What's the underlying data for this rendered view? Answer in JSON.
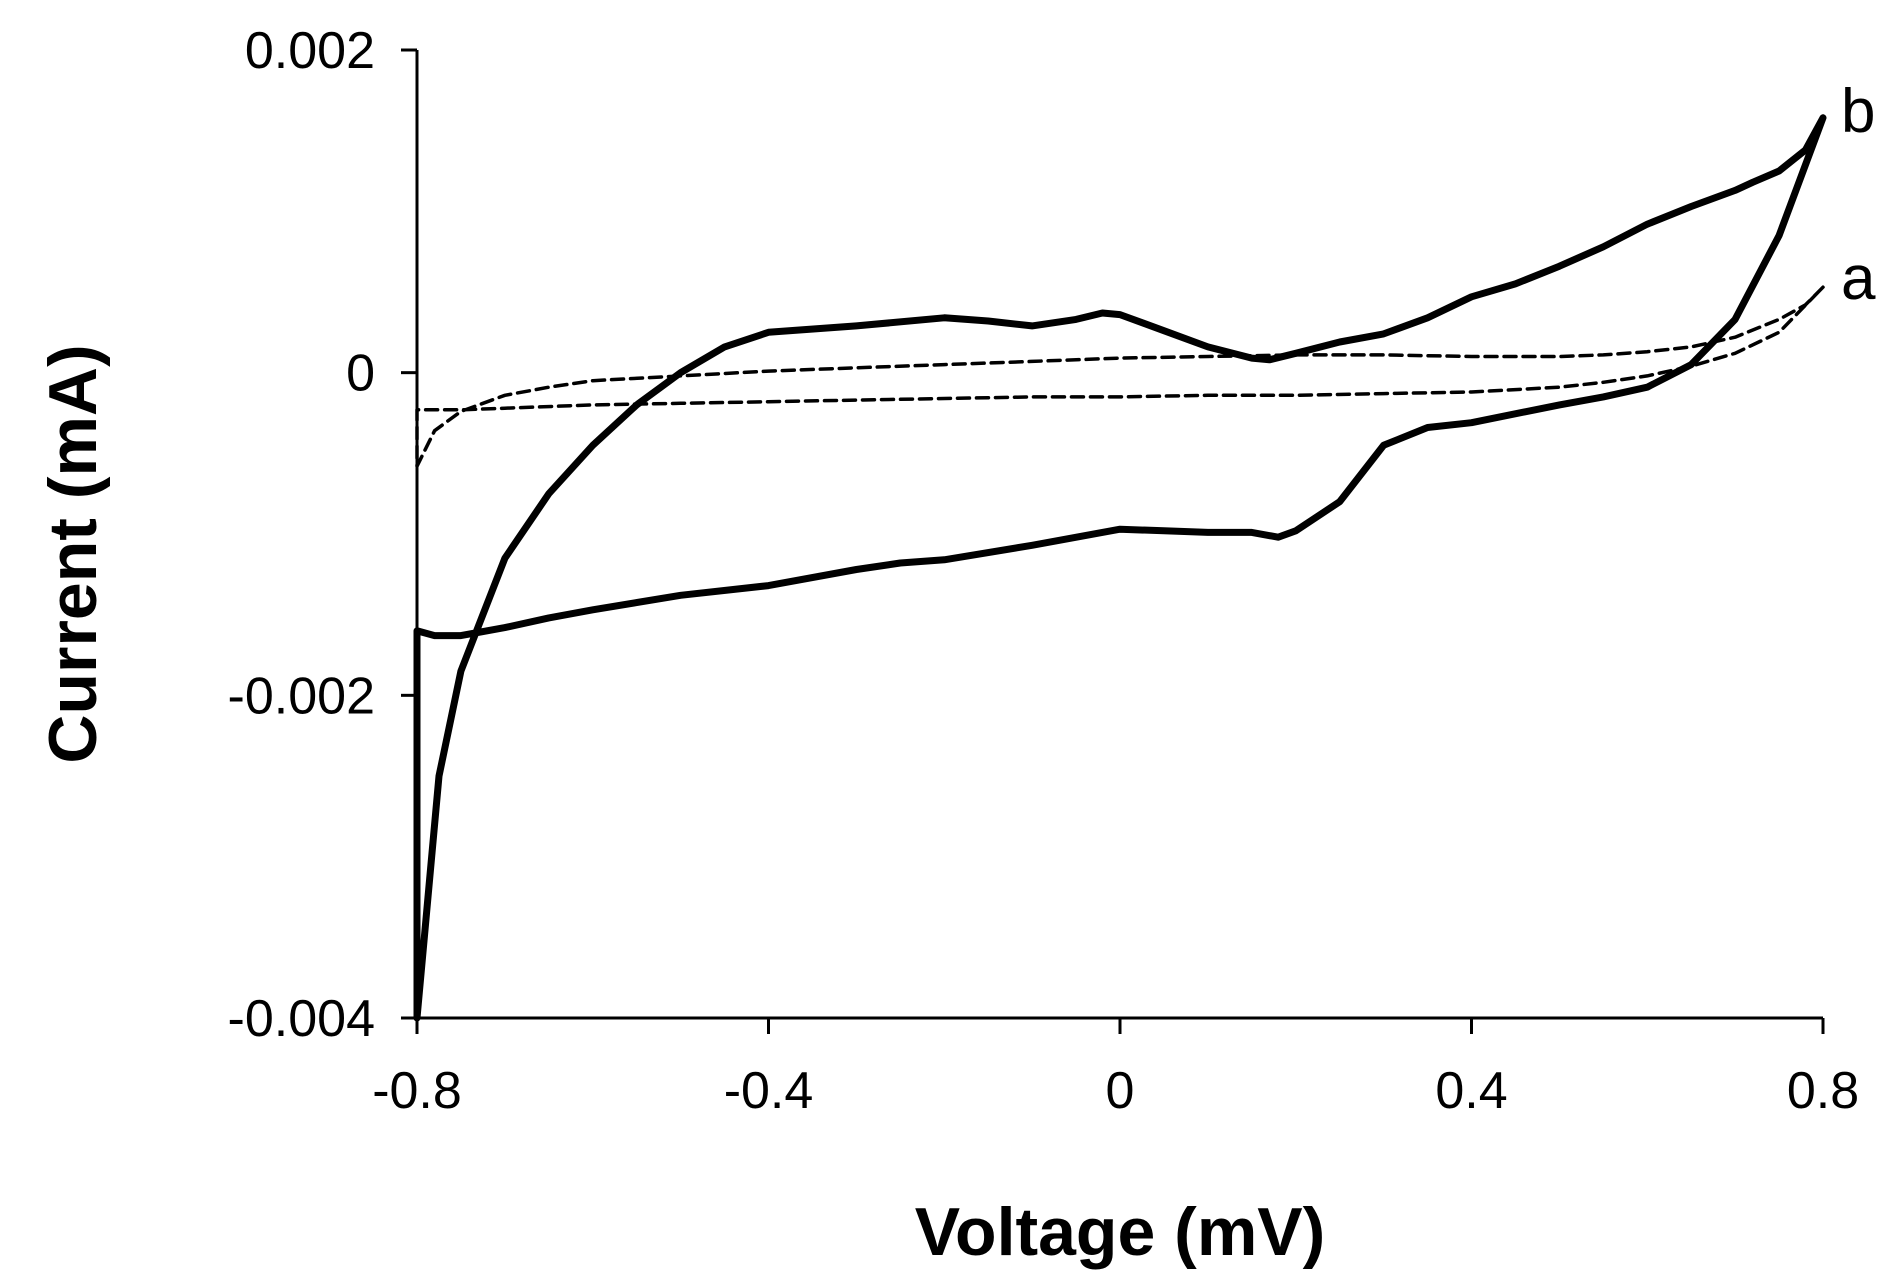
{
  "chart_data": {
    "type": "line",
    "title": "",
    "xlabel": "Voltage (mV)",
    "ylabel": "Current (mA)",
    "xlim": [
      -0.8,
      0.8
    ],
    "ylim": [
      -0.004,
      0.002
    ],
    "xticks": [
      -0.8,
      -0.4,
      0,
      0.4,
      0.8
    ],
    "xtick_labels": [
      "-0.8",
      "-0.4",
      "0",
      "0.4",
      "0.8"
    ],
    "yticks": [
      -0.004,
      -0.002,
      0,
      0.002
    ],
    "ytick_labels": [
      "-0.004",
      "-0.002",
      "0",
      "0.002"
    ],
    "grid": false,
    "legend": "inline labels at right end of curves",
    "series": [
      {
        "name": "a",
        "style": "dashed",
        "color": "#000000",
        "x": [
          0.8,
          0.78,
          0.75,
          0.7,
          0.65,
          0.6,
          0.55,
          0.5,
          0.4,
          0.3,
          0.2,
          0.1,
          0.0,
          -0.1,
          -0.2,
          -0.3,
          -0.4,
          -0.5,
          -0.6,
          -0.65,
          -0.7,
          -0.75,
          -0.78,
          -0.8,
          -0.8,
          -0.75,
          -0.7,
          -0.6,
          -0.5,
          -0.4,
          -0.3,
          -0.2,
          -0.1,
          0.0,
          0.1,
          0.2,
          0.3,
          0.4,
          0.5,
          0.55,
          0.6,
          0.65,
          0.7,
          0.75,
          0.8
        ],
        "y": [
          0.00053,
          0.00042,
          0.00033,
          0.00022,
          0.00016,
          0.00013,
          0.00011,
          0.0001,
          0.0001,
          0.00011,
          0.00011,
          0.0001,
          9e-05,
          7e-05,
          5e-05,
          3e-05,
          1e-05,
          -2e-05,
          -5e-05,
          -9e-05,
          -0.00014,
          -0.00024,
          -0.00036,
          -0.00058,
          -0.00023,
          -0.00023,
          -0.00022,
          -0.0002,
          -0.00019,
          -0.00018,
          -0.00017,
          -0.00016,
          -0.00015,
          -0.00015,
          -0.00014,
          -0.00014,
          -0.00013,
          -0.00012,
          -9e-05,
          -6e-05,
          -2e-05,
          4e-05,
          0.00012,
          0.00025,
          0.00053
        ]
      },
      {
        "name": "b",
        "style": "solid",
        "color": "#000000",
        "x": [
          0.8,
          0.78,
          0.75,
          0.72,
          0.7,
          0.65,
          0.6,
          0.55,
          0.5,
          0.45,
          0.4,
          0.35,
          0.3,
          0.25,
          0.2,
          0.17,
          0.15,
          0.1,
          0.05,
          0.0,
          -0.02,
          -0.05,
          -0.1,
          -0.15,
          -0.2,
          -0.3,
          -0.4,
          -0.45,
          -0.5,
          -0.55,
          -0.6,
          -0.65,
          -0.7,
          -0.75,
          -0.775,
          -0.8,
          -0.8,
          -0.78,
          -0.75,
          -0.7,
          -0.65,
          -0.6,
          -0.5,
          -0.4,
          -0.3,
          -0.25,
          -0.2,
          -0.1,
          0.0,
          0.05,
          0.1,
          0.15,
          0.18,
          0.2,
          0.25,
          0.3,
          0.35,
          0.4,
          0.5,
          0.55,
          0.6,
          0.65,
          0.7,
          0.75,
          0.8
        ],
        "y": [
          0.00158,
          0.00138,
          0.00125,
          0.00118,
          0.00113,
          0.00103,
          0.00092,
          0.00078,
          0.00066,
          0.00055,
          0.00047,
          0.00034,
          0.00024,
          0.00019,
          0.00012,
          8e-05,
          9e-05,
          0.00016,
          0.00026,
          0.00036,
          0.00037,
          0.00033,
          0.00029,
          0.00032,
          0.00034,
          0.00029,
          0.00025,
          0.00016,
          0.0,
          -0.0002,
          -0.00045,
          -0.00075,
          -0.00115,
          -0.00185,
          -0.0025,
          -0.004,
          -0.0016,
          -0.00163,
          -0.00163,
          -0.00158,
          -0.00152,
          -0.00147,
          -0.00138,
          -0.00132,
          -0.00122,
          -0.00118,
          -0.00116,
          -0.00107,
          -0.00097,
          -0.00098,
          -0.00099,
          -0.00099,
          -0.00102,
          -0.00098,
          -0.0008,
          -0.00045,
          -0.00034,
          -0.00031,
          -0.0002,
          -0.00015,
          -9e-05,
          5e-05,
          0.00033,
          0.00085,
          0.00158
        ]
      }
    ]
  }
}
